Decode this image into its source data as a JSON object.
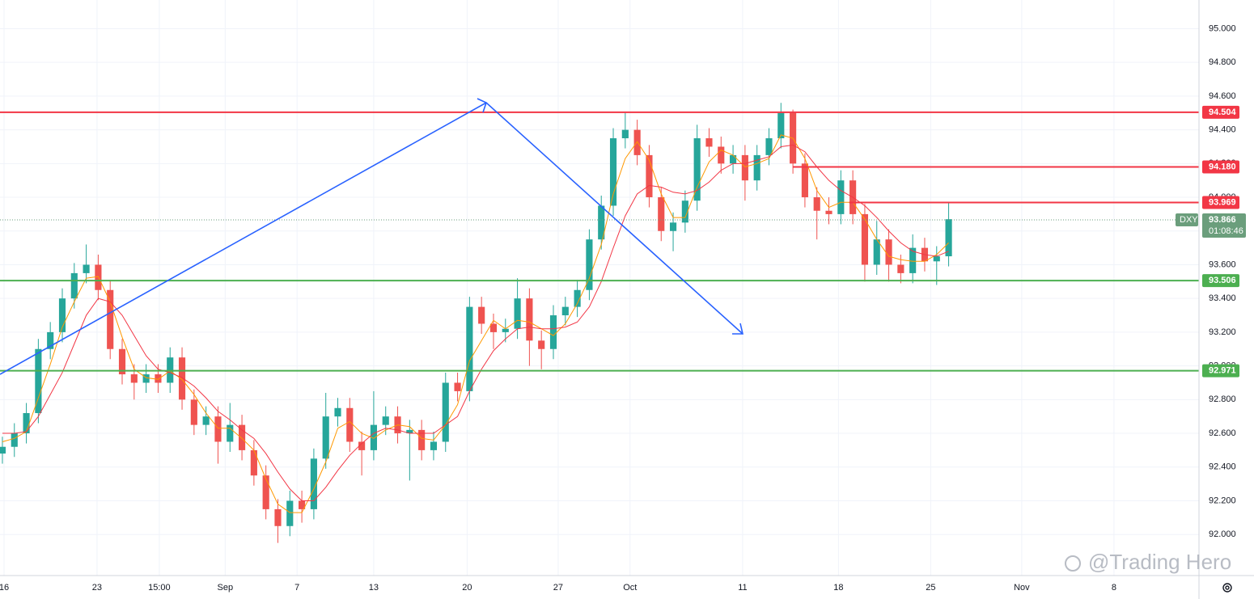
{
  "chart_data": {
    "type": "candlestick",
    "xlim": [
      -0.2,
      99.9
    ],
    "xticks": [
      {
        "value": 0.14,
        "label": "16"
      },
      {
        "value": 7.9,
        "label": "23"
      },
      {
        "value": 13.1,
        "label": "15:00"
      },
      {
        "value": 18.6,
        "label": "Sep"
      },
      {
        "value": 24.6,
        "label": "7"
      },
      {
        "value": 31.0,
        "label": "13"
      },
      {
        "value": 38.8,
        "label": "20"
      },
      {
        "value": 46.4,
        "label": "27"
      },
      {
        "value": 52.4,
        "label": "Oct"
      },
      {
        "value": 61.8,
        "label": "11"
      },
      {
        "value": 69.8,
        "label": "18"
      },
      {
        "value": 77.5,
        "label": "25"
      },
      {
        "value": 85.1,
        "label": "Nov"
      },
      {
        "value": 92.8,
        "label": "8"
      }
    ],
    "ylim": [
      91.79,
      95.17
    ],
    "yticks": [
      {
        "value": 92.0,
        "label": "92.000"
      },
      {
        "value": 92.2,
        "label": "92.200"
      },
      {
        "value": 92.4,
        "label": "92.400"
      },
      {
        "value": 92.6,
        "label": "92.600"
      },
      {
        "value": 92.8,
        "label": "92.800"
      },
      {
        "value": 93.0,
        "label": "93.000"
      },
      {
        "value": 93.2,
        "label": "93.200"
      },
      {
        "value": 93.4,
        "label": "93.400"
      },
      {
        "value": 93.6,
        "label": "93.600"
      },
      {
        "value": 93.8,
        "label": "93.800"
      },
      {
        "value": 94.0,
        "label": "94.000"
      },
      {
        "value": 94.2,
        "label": "94.200"
      },
      {
        "value": 94.4,
        "label": "94.400"
      },
      {
        "value": 94.6,
        "label": "94.600"
      },
      {
        "value": 94.8,
        "label": "94.800"
      },
      {
        "value": 95.0,
        "label": "95.000"
      }
    ],
    "grid": true,
    "up_color": "#26a69a",
    "down_color": "#ef5350",
    "candles": {
      "open": [
        92.48,
        92.52,
        92.6,
        92.72,
        93.1,
        93.2,
        93.4,
        93.55,
        93.6,
        93.45,
        93.1,
        92.95,
        92.9,
        92.95,
        92.9,
        93.05,
        92.8,
        92.65,
        92.7,
        92.55,
        92.65,
        92.5,
        92.35,
        92.15,
        92.05,
        92.2,
        92.15,
        92.45,
        92.7,
        92.75,
        92.55,
        92.5,
        92.65,
        92.7,
        92.6,
        92.62,
        92.5,
        92.55,
        92.9,
        92.85,
        93.35,
        93.25,
        93.2,
        93.22,
        93.4,
        93.15,
        93.1,
        93.3,
        93.35,
        93.45,
        93.75,
        93.95,
        94.35,
        94.4,
        94.25,
        94.0,
        93.8,
        93.85,
        93.98,
        94.35,
        94.3,
        94.2,
        94.25,
        94.1,
        94.25,
        94.35,
        94.5,
        94.2,
        94.0,
        93.92,
        93.9,
        94.1,
        93.9,
        93.6,
        93.75,
        93.6,
        93.55,
        93.7,
        93.62,
        93.65
      ],
      "high": [
        92.58,
        92.66,
        92.78,
        93.16,
        93.26,
        93.46,
        93.61,
        93.72,
        93.66,
        93.51,
        93.16,
        93.01,
        93.01,
        93.01,
        93.11,
        93.11,
        92.86,
        92.76,
        92.76,
        92.78,
        92.71,
        92.56,
        92.41,
        92.21,
        92.26,
        92.26,
        92.51,
        92.84,
        92.81,
        92.81,
        92.61,
        92.85,
        92.76,
        92.76,
        92.68,
        92.68,
        92.61,
        92.96,
        92.96,
        93.41,
        93.41,
        93.31,
        93.28,
        93.52,
        93.46,
        93.21,
        93.36,
        93.41,
        93.51,
        93.81,
        94.01,
        94.41,
        94.5,
        94.46,
        94.31,
        94.06,
        93.91,
        94.04,
        94.43,
        94.41,
        94.36,
        94.31,
        94.31,
        94.31,
        94.41,
        94.56,
        94.52,
        94.26,
        94.06,
        94.0,
        94.16,
        94.16,
        93.96,
        93.86,
        93.81,
        93.66,
        93.78,
        93.76,
        93.71,
        93.97
      ],
      "low": [
        92.42,
        92.46,
        92.54,
        92.66,
        93.04,
        93.14,
        93.34,
        93.49,
        93.39,
        93.04,
        92.89,
        92.8,
        92.84,
        92.84,
        92.84,
        92.74,
        92.59,
        92.59,
        92.42,
        92.49,
        92.44,
        92.29,
        92.09,
        91.95,
        91.99,
        92.07,
        92.09,
        92.39,
        92.64,
        92.49,
        92.35,
        92.44,
        92.59,
        92.54,
        92.32,
        92.44,
        92.44,
        92.49,
        92.79,
        92.79,
        93.19,
        93.1,
        93.14,
        93.16,
        93.0,
        92.98,
        93.04,
        93.24,
        93.29,
        93.39,
        93.69,
        93.89,
        94.29,
        94.19,
        93.94,
        93.74,
        93.68,
        93.79,
        93.92,
        94.24,
        94.14,
        94.14,
        93.98,
        94.04,
        94.19,
        94.29,
        94.14,
        93.94,
        93.75,
        93.84,
        93.84,
        93.84,
        93.5,
        93.54,
        93.5,
        93.49,
        93.49,
        93.56,
        93.48,
        93.59
      ],
      "close": [
        92.52,
        92.6,
        92.72,
        93.1,
        93.2,
        93.4,
        93.55,
        93.6,
        93.45,
        93.1,
        92.95,
        92.9,
        92.95,
        92.9,
        93.05,
        92.8,
        92.65,
        92.7,
        92.55,
        92.65,
        92.5,
        92.35,
        92.15,
        92.05,
        92.2,
        92.15,
        92.45,
        92.7,
        92.75,
        92.55,
        92.5,
        92.65,
        92.7,
        92.6,
        92.62,
        92.5,
        92.55,
        92.9,
        92.85,
        93.35,
        93.25,
        93.2,
        93.22,
        93.4,
        93.15,
        93.1,
        93.3,
        93.35,
        93.45,
        93.75,
        93.95,
        94.35,
        94.4,
        94.25,
        94.0,
        93.8,
        93.85,
        93.98,
        94.35,
        94.3,
        94.2,
        94.25,
        94.1,
        94.25,
        94.35,
        94.5,
        94.2,
        94.0,
        93.92,
        93.9,
        94.1,
        93.9,
        93.6,
        93.75,
        93.6,
        93.55,
        93.7,
        93.62,
        93.65,
        93.87
      ]
    },
    "series": [
      {
        "color": "#ff9800",
        "values": [
          92.55,
          92.57,
          92.61,
          92.81,
          93.01,
          93.23,
          93.38,
          93.52,
          93.53,
          93.38,
          93.17,
          92.98,
          92.93,
          92.92,
          92.97,
          92.92,
          92.83,
          92.72,
          92.63,
          92.63,
          92.57,
          92.5,
          92.33,
          92.18,
          92.13,
          92.13,
          92.27,
          92.43,
          92.63,
          92.67,
          92.6,
          92.57,
          92.62,
          92.65,
          92.64,
          92.57,
          92.56,
          92.65,
          92.77,
          93.03,
          93.15,
          93.27,
          93.22,
          93.27,
          93.26,
          93.22,
          93.18,
          93.25,
          93.37,
          93.52,
          93.72,
          94.02,
          94.23,
          94.33,
          94.22,
          94.02,
          93.88,
          93.88,
          94.06,
          94.21,
          94.28,
          94.25,
          94.18,
          94.2,
          94.23,
          94.37,
          94.35,
          94.23,
          94.04,
          93.94,
          93.97,
          93.97,
          93.87,
          93.75,
          93.65,
          93.63,
          93.62,
          93.62,
          93.66,
          93.73
        ]
      },
      {
        "color": "#f23645",
        "values": [
          92.6,
          92.6,
          92.61,
          92.7,
          92.83,
          92.96,
          93.13,
          93.3,
          93.4,
          93.38,
          93.3,
          93.18,
          93.06,
          92.98,
          92.96,
          92.93,
          92.88,
          92.81,
          92.73,
          92.68,
          92.62,
          92.57,
          92.48,
          92.37,
          92.27,
          92.2,
          92.2,
          92.28,
          92.38,
          92.47,
          92.54,
          92.6,
          92.63,
          92.62,
          92.6,
          92.6,
          92.6,
          92.65,
          92.7,
          92.85,
          92.98,
          93.09,
          93.16,
          93.22,
          93.23,
          93.22,
          93.22,
          93.23,
          93.26,
          93.35,
          93.5,
          93.7,
          93.89,
          94.02,
          94.07,
          94.06,
          94.03,
          94.02,
          94.04,
          94.09,
          94.16,
          94.2,
          94.2,
          94.22,
          94.24,
          94.3,
          94.31,
          94.27,
          94.18,
          94.1,
          94.04,
          94.0,
          93.95,
          93.88,
          93.8,
          93.73,
          93.68,
          93.66,
          93.65,
          93.68
        ]
      }
    ],
    "levels": [
      {
        "value": 94.504,
        "label": "94.504",
        "color": "#f23645",
        "from": -0.2
      },
      {
        "value": 94.18,
        "label": "94.180",
        "color": "#f23645",
        "from": 66
      },
      {
        "value": 93.969,
        "label": "93.969",
        "color": "#f23645",
        "from": 70.7
      },
      {
        "value": 93.506,
        "label": "93.506",
        "color": "#4caf50",
        "from": -0.2
      },
      {
        "value": 92.971,
        "label": "92.971",
        "color": "#4caf50",
        "from": -0.2
      }
    ],
    "last": {
      "value": 93.866,
      "label": "93.866",
      "symbol": "DXY",
      "countdown": "01:08:46",
      "color": "#6b9e7c"
    },
    "watermark": "@Trading Hero"
  }
}
